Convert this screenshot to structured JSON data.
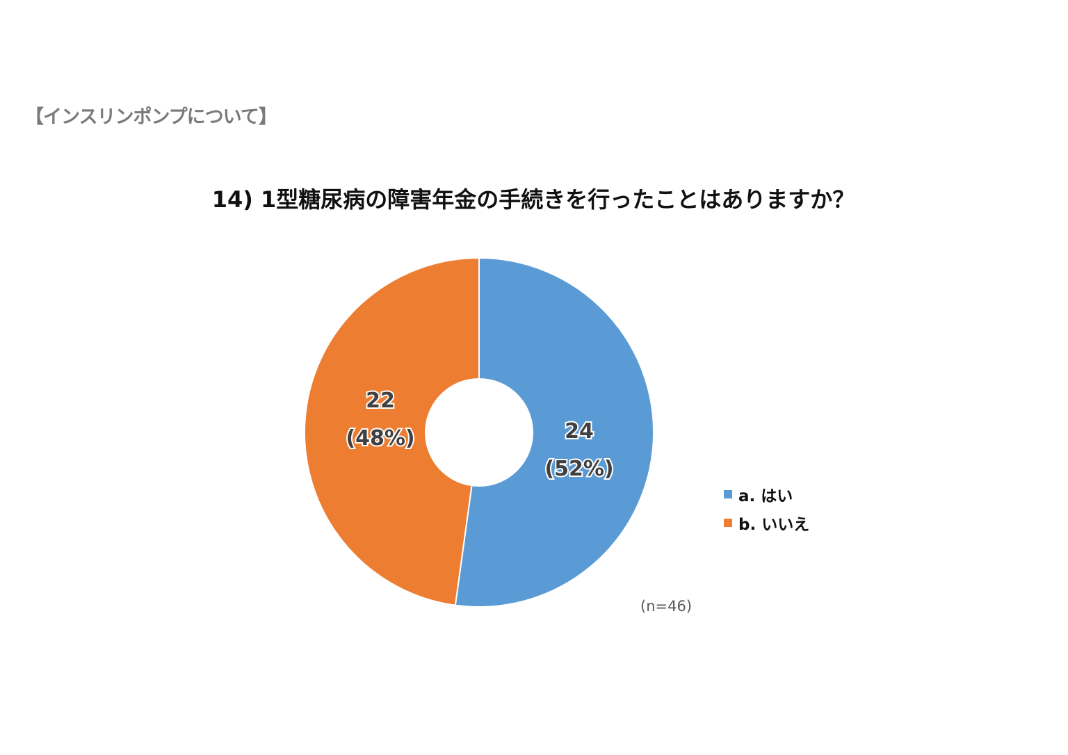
{
  "section_heading": "【インスリンポンプについて】",
  "chart_data": {
    "type": "pie",
    "donut": true,
    "title": "14) 1型糖尿病の障害年金の手続きを行ったことはありますか？",
    "categories": [
      "a. はい",
      "b. いいえ"
    ],
    "values": [
      24,
      22
    ],
    "percent_labels": [
      "(52%)",
      "(48%)"
    ],
    "colors": [
      "#5B9BD5",
      "#ED7D31"
    ],
    "legend_position": "right",
    "note": "(n=46)"
  }
}
